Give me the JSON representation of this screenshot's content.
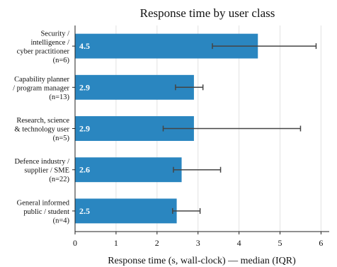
{
  "chart_data": {
    "type": "bar",
    "orientation": "horizontal",
    "title": "Response time by user class",
    "xlabel": "Response time (s, wall-clock) — median (IQR)",
    "ylabel": "",
    "xlim": [
      0,
      6.2
    ],
    "xticks": [
      "0",
      "1",
      "2",
      "3",
      "4",
      "5",
      "6"
    ],
    "grid": "vertical",
    "bar_color": "#2a86c0",
    "errorbar_color": "#444444",
    "categories": [
      {
        "lines": [
          "Security /",
          "intelligence /",
          "cyber practitioner",
          "(n=6)"
        ],
        "median": 4.46,
        "label": "4.5",
        "q1": 3.35,
        "q3": 5.88
      },
      {
        "lines": [
          "Capability planner",
          "/ program manager",
          "(n=13)"
        ],
        "median": 2.9,
        "label": "2.9",
        "q1": 2.45,
        "q3": 3.12
      },
      {
        "lines": [
          "Research, science",
          "& technology user",
          "(n=5)"
        ],
        "median": 2.9,
        "label": "2.9",
        "q1": 2.15,
        "q3": 5.5
      },
      {
        "lines": [
          "Defence industry /",
          "supplier / SME",
          "(n=22)"
        ],
        "median": 2.6,
        "label": "2.6",
        "q1": 2.4,
        "q3": 3.55
      },
      {
        "lines": [
          "General informed",
          "public / student",
          "(n=4)"
        ],
        "median": 2.48,
        "label": "2.5",
        "q1": 2.38,
        "q3": 3.05
      }
    ]
  }
}
